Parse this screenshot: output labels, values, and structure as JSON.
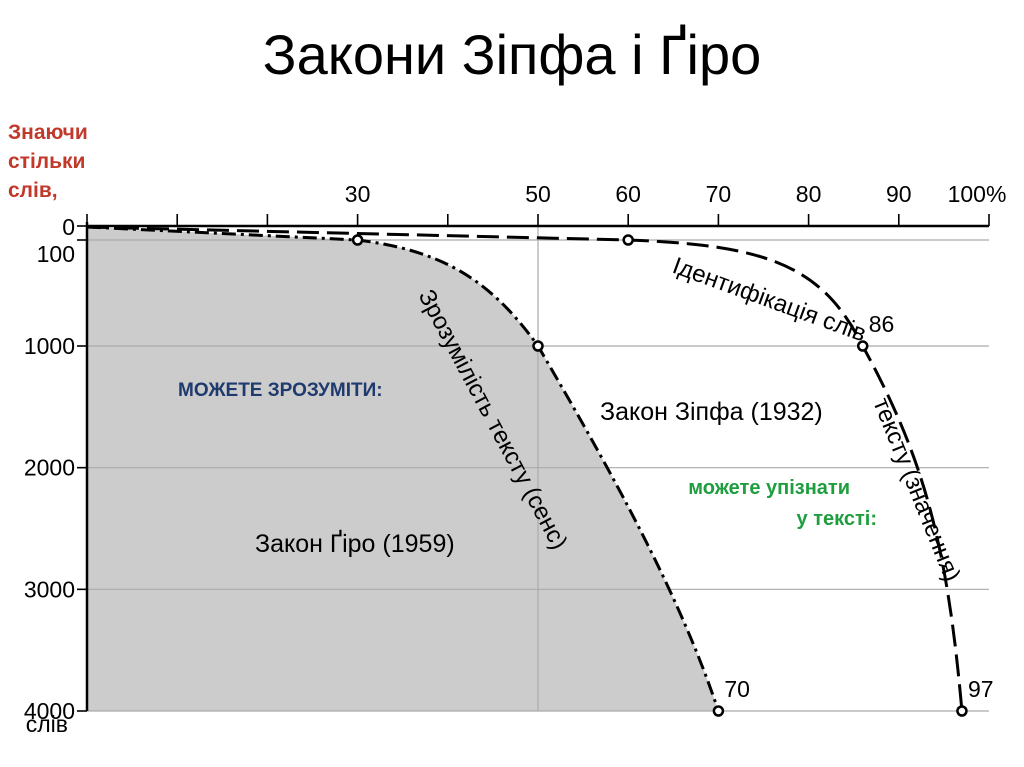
{
  "title": "Закони Зіпфа і Ґіро",
  "side_label": [
    "Знаючи",
    "стільки",
    "слів,"
  ],
  "chart_data": {
    "type": "line",
    "x_ticks": [
      "30",
      "50",
      "60",
      "70",
      "80",
      "90",
      "100%"
    ],
    "x_tick_values": [
      30,
      50,
      60,
      70,
      80,
      90,
      100
    ],
    "xlim": [
      0,
      100
    ],
    "y_ticks": [
      "0",
      "100",
      "1000",
      "2000",
      "3000",
      "4000"
    ],
    "y_tick_values": [
      0,
      100,
      1000,
      2000,
      3000,
      4000
    ],
    "y_unit_label": "слів",
    "ylim": [
      0,
      4000
    ],
    "series": [
      {
        "name": "Зрозумілість тексту (сенс)",
        "style": "dash-dot",
        "points": [
          [
            0,
            0
          ],
          [
            30,
            100
          ],
          [
            50,
            1000
          ],
          [
            70,
            4000
          ]
        ],
        "markers": [
          [
            30,
            100,
            ""
          ],
          [
            50,
            1000,
            ""
          ],
          [
            70,
            4000,
            "70"
          ]
        ]
      },
      {
        "name": "Ідентифікація слів тексту (значення)",
        "style": "dashed",
        "points": [
          [
            0,
            0
          ],
          [
            30,
            100
          ],
          [
            60,
            100
          ],
          [
            86,
            1000
          ],
          [
            97,
            4000
          ]
        ],
        "markers": [
          [
            60,
            100,
            ""
          ],
          [
            86,
            1000,
            "86"
          ],
          [
            97,
            4000,
            "97"
          ]
        ]
      }
    ],
    "annotations": {
      "zipf_law": "Закон Зіпфа (1932)",
      "giro_law": "Закон Ґіро (1959)",
      "can_understand": "МОЖЕТЕ ЗРОЗУМІТИ:",
      "can_recognize_1": "можете упізнати",
      "can_recognize_2": "у тексті:"
    },
    "colors": {
      "shaded_area": "#cccccc",
      "can_understand": "#1f3a6e",
      "can_recognize": "#1e9e3e",
      "side_label": "#c0392b"
    },
    "grid": true
  }
}
